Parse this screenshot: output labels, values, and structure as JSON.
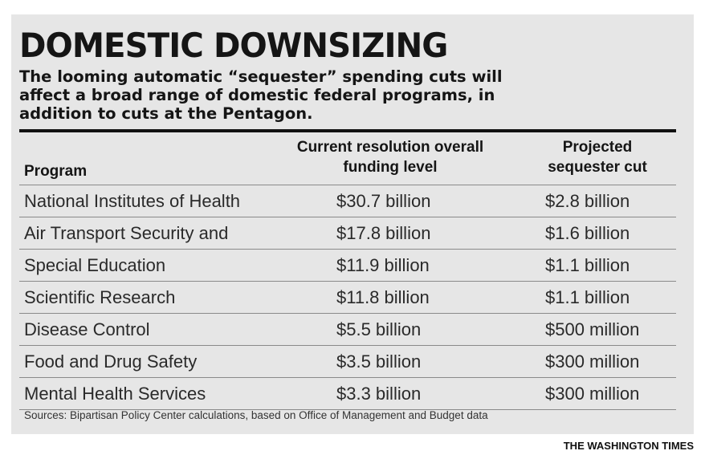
{
  "credit": "THE WASHINGTON TIMES",
  "chart_data": {
    "type": "table",
    "title": "DOMESTIC DOWNSIZING",
    "subtitle": "The looming automatic “sequester” spending cuts will affect a broad range of domestic federal programs, in addition to cuts at the Pentagon.",
    "columns": [
      "Program",
      "Current resolution overall funding level",
      "Projected sequester cut"
    ],
    "rows": [
      {
        "program": "National Institutes of Health",
        "level": "$30.7 billion",
        "cut": "$2.8 billion"
      },
      {
        "program": "Air Transport Security and",
        "level": "$17.8 billion",
        "cut": "$1.6 billion"
      },
      {
        "program": "Special Education",
        "level": "$11.9 billion",
        "cut": "$1.1 billion"
      },
      {
        "program": "Scientific Research",
        "level": "$11.8 billion",
        "cut": "$1.1 billion"
      },
      {
        "program": "Disease Control",
        "level": "$5.5 billion",
        "cut": "$500 million"
      },
      {
        "program": "Food and Drug Safety",
        "level": "$3.5 billion",
        "cut": "$300 million"
      },
      {
        "program": "Mental Health Services",
        "level": "$3.3 billion",
        "cut": "$300 million"
      }
    ],
    "source": "Sources: Bipartisan Policy Center calculations, based on Office of Management and Budget data"
  }
}
